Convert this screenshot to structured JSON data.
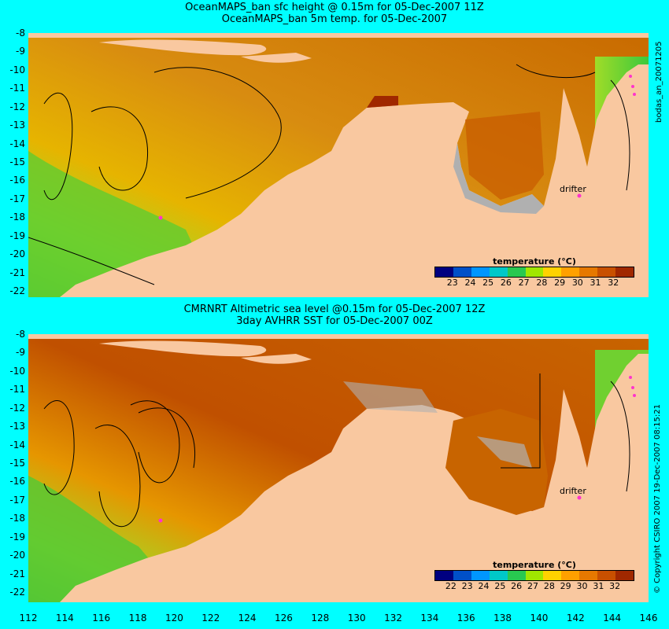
{
  "top_panel": {
    "title_line1": "OceanMAPS_ban sfc height @ 0.15m for 05-Dec-2007 11Z",
    "title_line2": "OceanMAPS_ban 5m temp. for 05-Dec-2007",
    "side_label": "bodas_an_20071205",
    "legend_title": "temperature (°C)",
    "legend_ticks": [
      "23",
      "24",
      "25",
      "26",
      "27",
      "28",
      "29",
      "30",
      "31",
      "32"
    ],
    "drifter_label": "drifter"
  },
  "bottom_panel": {
    "title_line1": "CMRNRT Altimetric sea level  @0.15m  for 05-Dec-2007 12Z",
    "title_line2": "3day AVHRR SST for 05-Dec-2007 00Z",
    "side_label": "© Copyright CSIRO 2007   19-Dec-2007 08:15:21",
    "legend_title": "temperature (°C)",
    "legend_ticks": [
      "22",
      "23",
      "24",
      "25",
      "26",
      "27",
      "28",
      "29",
      "30",
      "31",
      "32"
    ],
    "drifter_label": "drifter"
  },
  "lat_labels": [
    "-8",
    "-9",
    "-10",
    "-11",
    "-12",
    "-13",
    "-14",
    "-15",
    "-16",
    "-17",
    "-18",
    "-19",
    "-20",
    "-21",
    "-22"
  ],
  "lon_labels": [
    "112",
    "114",
    "116",
    "118",
    "120",
    "122",
    "124",
    "126",
    "128",
    "130",
    "132",
    "134",
    "136",
    "138",
    "140",
    "142",
    "144",
    "146"
  ],
  "colors": {
    "background": "#00ffff",
    "land": "#f9c8a0",
    "warm_sea": "#c86400",
    "hot_sea": "#a02800",
    "cool_sea": "#5ad228",
    "mid_sea": "#e6a000",
    "grey_mask": "#b0b0b0",
    "drifter": "#ff33cc"
  },
  "legend_colors": [
    "#000080",
    "#0050c8",
    "#0096ff",
    "#00c8c8",
    "#28c850",
    "#a0e600",
    "#ffd200",
    "#ffa000",
    "#e67800",
    "#c85000",
    "#a02800"
  ]
}
